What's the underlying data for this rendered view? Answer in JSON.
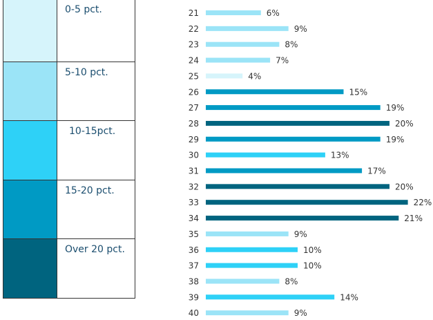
{
  "legend": {
    "items": [
      {
        "label": "0-5 pct.",
        "color": "#d6f4fb"
      },
      {
        "label": "5-10 pct.",
        "color": "#9be4f7"
      },
      {
        "label": "10-15pct.",
        "color": "#2ed1f7"
      },
      {
        "label": "15-20 pct.",
        "color": "#009ac4"
      },
      {
        "label": "Over 20 pct.",
        "color": "#00647f"
      }
    ]
  },
  "chart_data": {
    "type": "bar",
    "orientation": "horizontal",
    "categories": [
      "21",
      "22",
      "23",
      "24",
      "25",
      "26",
      "27",
      "28",
      "29",
      "30",
      "31",
      "32",
      "33",
      "34",
      "35",
      "36",
      "37",
      "38",
      "39",
      "40"
    ],
    "values": [
      6,
      9,
      8,
      7,
      4,
      15,
      19,
      20,
      19,
      13,
      17,
      20,
      22,
      21,
      9,
      10,
      10,
      8,
      14,
      9
    ],
    "data_labels": [
      "6%",
      "9%",
      "8%",
      "7%",
      "4%",
      "15%",
      "19%",
      "20%",
      "19%",
      "13%",
      "17%",
      "20%",
      "22%",
      "21%",
      "9%",
      "10%",
      "10%",
      "8%",
      "14%",
      "9%"
    ],
    "bar_color_classes": [
      1,
      1,
      1,
      1,
      0,
      3,
      3,
      4,
      3,
      2,
      3,
      4,
      4,
      4,
      1,
      2,
      2,
      1,
      2,
      1
    ],
    "value_unit": "%",
    "title": "",
    "xlabel": "",
    "ylabel": "",
    "xlim": [
      0,
      22
    ],
    "grid": false
  }
}
